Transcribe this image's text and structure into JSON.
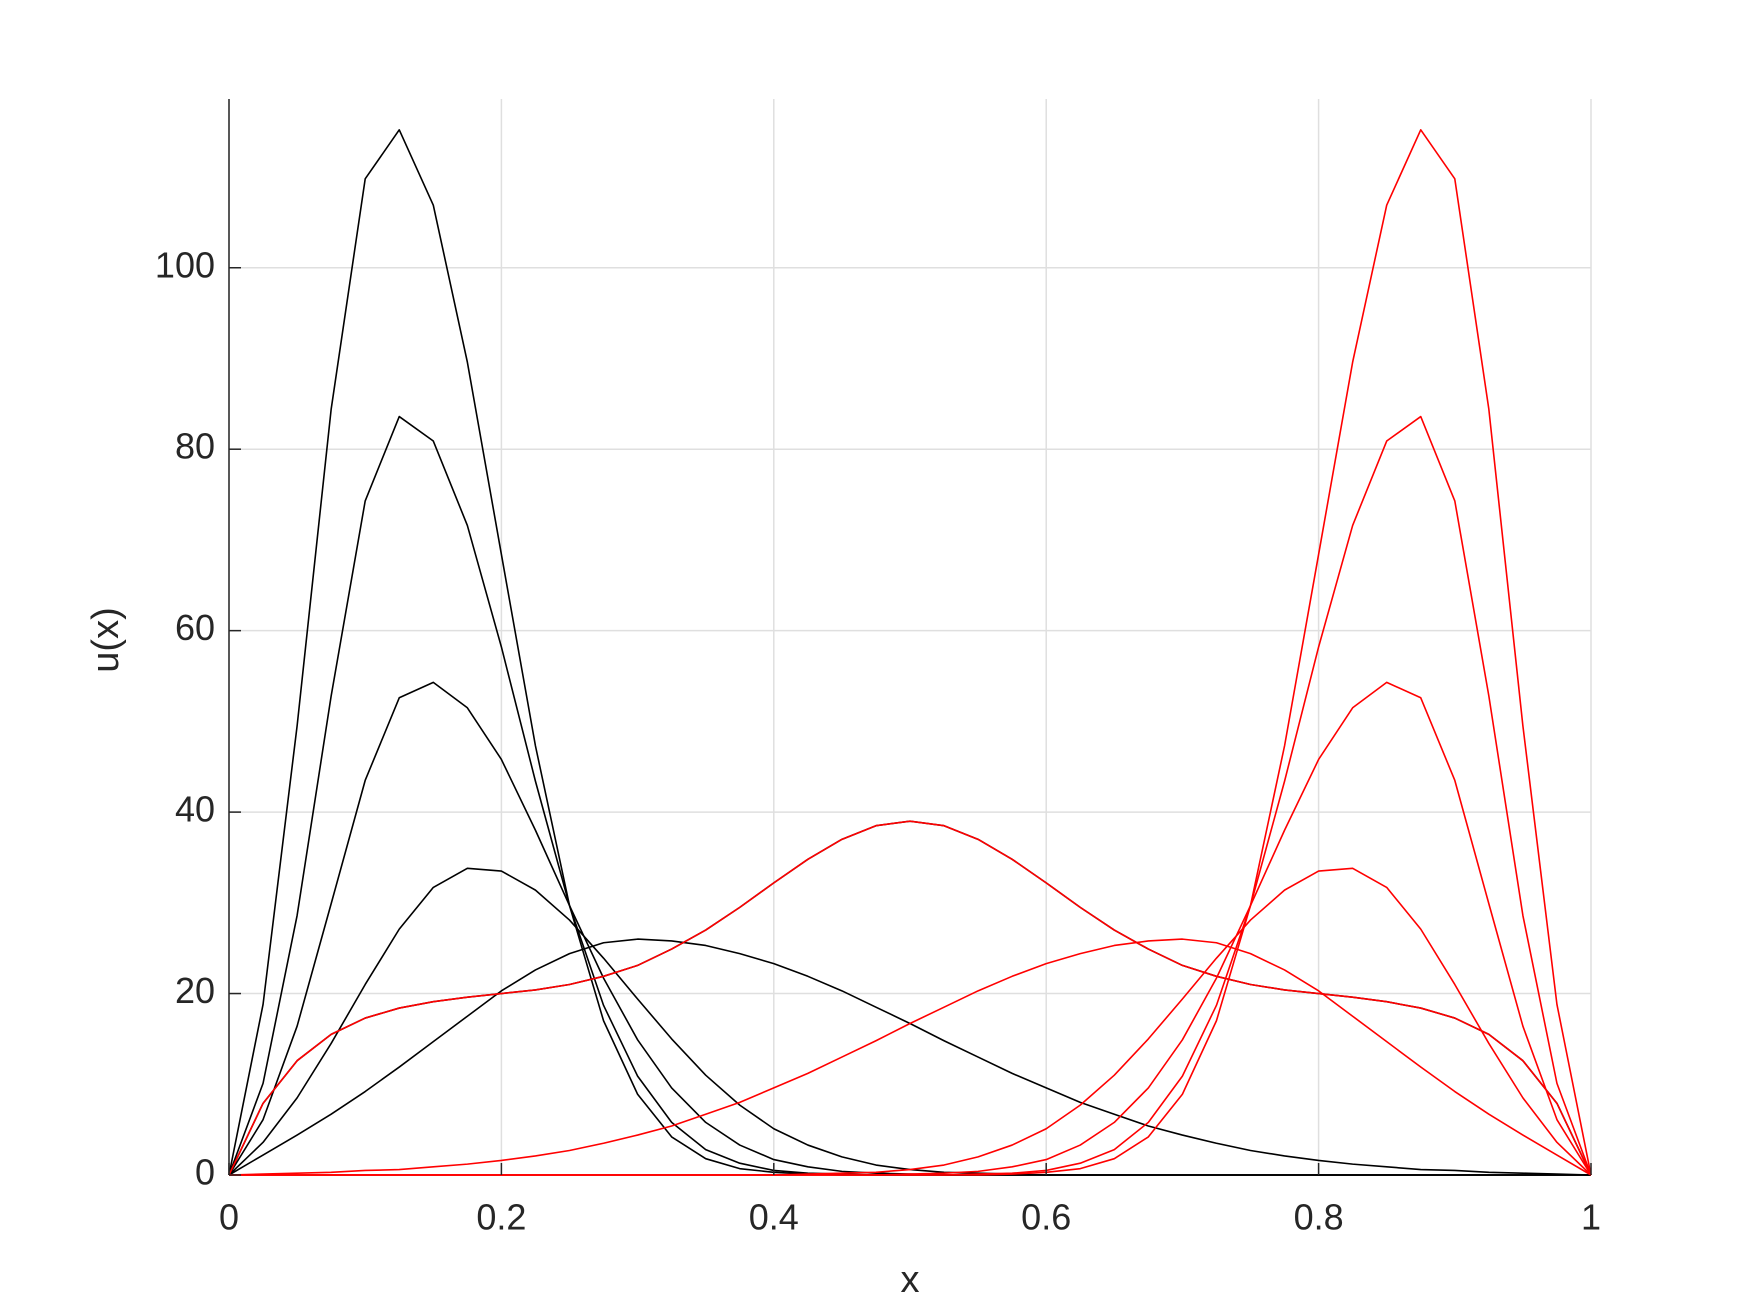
{
  "chart_data": {
    "type": "line",
    "xlabel": "x",
    "ylabel": "u(x)",
    "xlim": [
      0,
      1
    ],
    "ylim": [
      0,
      118.6
    ],
    "xticks": [
      0,
      0.2,
      0.4,
      0.6,
      0.8,
      1
    ],
    "yticks": [
      0,
      20,
      40,
      60,
      80,
      100
    ],
    "grid": true,
    "x": [
      0,
      0.025,
      0.05,
      0.075,
      0.1,
      0.125,
      0.15,
      0.175,
      0.2,
      0.225,
      0.25,
      0.275,
      0.3,
      0.325,
      0.35,
      0.375,
      0.4,
      0.425,
      0.45,
      0.475,
      0.5,
      0.525,
      0.55,
      0.575,
      0.6,
      0.625,
      0.65,
      0.675,
      0.7,
      0.725,
      0.75,
      0.775,
      0.8,
      0.825,
      0.85,
      0.875,
      0.9,
      0.925,
      0.95,
      0.975,
      1
    ],
    "series": [
      {
        "color": "#000000",
        "values": [
          0,
          7.9,
          12.6,
          15.5,
          17.3,
          18.4,
          19.1,
          19.6,
          20.0,
          20.4,
          21.0,
          21.9,
          23.1,
          24.9,
          27.0,
          29.5,
          32.2,
          34.8,
          37.0,
          38.5,
          39.0,
          38.5,
          37.0,
          34.8,
          32.2,
          29.5,
          27.0,
          24.9,
          23.1,
          21.9,
          21.0,
          20.4,
          20.0,
          19.6,
          19.1,
          18.4,
          17.3,
          15.5,
          12.6,
          7.9,
          0
        ]
      },
      {
        "color": "#000000",
        "values": [
          0,
          2.2,
          4.4,
          6.7,
          9.2,
          11.9,
          14.7,
          17.5,
          20.3,
          22.6,
          24.4,
          25.6,
          26.0,
          25.8,
          25.3,
          24.4,
          23.3,
          21.9,
          20.3,
          18.5,
          16.7,
          14.8,
          13.0,
          11.2,
          9.6,
          8.0,
          6.7,
          5.4,
          4.4,
          3.5,
          2.7,
          2.1,
          1.6,
          1.2,
          0.9,
          0.6,
          0.5,
          0.3,
          0.2,
          0.1,
          0
        ]
      },
      {
        "color": "#000000",
        "values": [
          0,
          3.6,
          8.5,
          14.5,
          21.0,
          27.1,
          31.7,
          33.8,
          33.5,
          31.4,
          28.1,
          23.9,
          19.4,
          15.0,
          11.0,
          7.7,
          5.1,
          3.3,
          2.0,
          1.1,
          0.6,
          0.3,
          0.2,
          0.1,
          0,
          0,
          0,
          0,
          0,
          0,
          0,
          0,
          0,
          0,
          0,
          0,
          0,
          0,
          0,
          0,
          0
        ]
      },
      {
        "color": "#000000",
        "values": [
          0,
          6.1,
          16.4,
          29.9,
          43.5,
          52.6,
          54.3,
          51.5,
          45.8,
          38.0,
          29.7,
          21.7,
          14.9,
          9.6,
          5.8,
          3.3,
          1.7,
          0.9,
          0.4,
          0.2,
          0.1,
          0,
          0,
          0,
          0,
          0,
          0,
          0,
          0,
          0,
          0,
          0,
          0,
          0,
          0,
          0,
          0,
          0,
          0,
          0,
          0
        ]
      },
      {
        "color": "#000000",
        "values": [
          0,
          10.1,
          28.6,
          52.8,
          74.3,
          83.6,
          80.9,
          71.6,
          58.2,
          43.4,
          29.7,
          18.7,
          10.9,
          5.8,
          2.8,
          1.3,
          0.5,
          0.2,
          0.1,
          0,
          0,
          0,
          0,
          0,
          0,
          0,
          0,
          0,
          0,
          0,
          0,
          0,
          0,
          0,
          0,
          0,
          0,
          0,
          0,
          0,
          0
        ]
      },
      {
        "color": "#000000",
        "values": [
          0,
          18.8,
          49.5,
          84.4,
          109.8,
          115.2,
          106.9,
          89.6,
          68.4,
          47.3,
          29.7,
          17.0,
          8.9,
          4.2,
          1.8,
          0.7,
          0.3,
          0.1,
          0,
          0,
          0,
          0,
          0,
          0,
          0,
          0,
          0,
          0,
          0,
          0,
          0,
          0,
          0,
          0,
          0,
          0,
          0,
          0,
          0,
          0,
          0
        ]
      },
      {
        "color": "#ff0000",
        "values": [
          0,
          7.9,
          12.6,
          15.5,
          17.3,
          18.4,
          19.1,
          19.6,
          20.0,
          20.4,
          21.0,
          21.9,
          23.1,
          24.9,
          27.0,
          29.5,
          32.2,
          34.8,
          37.0,
          38.5,
          39.0,
          38.5,
          37.0,
          34.8,
          32.2,
          29.5,
          27.0,
          24.9,
          23.1,
          21.9,
          21.0,
          20.4,
          20.0,
          19.6,
          19.1,
          18.4,
          17.3,
          15.5,
          12.6,
          7.9,
          0
        ]
      },
      {
        "color": "#ff0000",
        "values": [
          0,
          0.1,
          0.2,
          0.3,
          0.5,
          0.6,
          0.9,
          1.2,
          1.6,
          2.1,
          2.7,
          3.5,
          4.4,
          5.4,
          6.7,
          8.0,
          9.6,
          11.2,
          13.0,
          14.8,
          16.7,
          18.5,
          20.3,
          21.9,
          23.3,
          24.4,
          25.3,
          25.8,
          26.0,
          25.6,
          24.4,
          22.6,
          20.3,
          17.5,
          14.7,
          11.9,
          9.2,
          6.7,
          4.4,
          2.2,
          0
        ]
      },
      {
        "color": "#ff0000",
        "values": [
          0,
          0,
          0,
          0,
          0,
          0,
          0,
          0,
          0,
          0,
          0,
          0,
          0,
          0,
          0,
          0,
          0,
          0.1,
          0.2,
          0.3,
          0.6,
          1.1,
          2.0,
          3.3,
          5.1,
          7.7,
          11.0,
          15.0,
          19.4,
          23.9,
          28.1,
          31.4,
          33.5,
          33.8,
          31.7,
          27.1,
          21.0,
          14.5,
          8.5,
          3.6,
          0
        ]
      },
      {
        "color": "#ff0000",
        "values": [
          0,
          0,
          0,
          0,
          0,
          0,
          0,
          0,
          0,
          0,
          0,
          0,
          0,
          0,
          0,
          0,
          0,
          0,
          0,
          0,
          0.1,
          0.2,
          0.4,
          0.9,
          1.7,
          3.3,
          5.8,
          9.6,
          14.9,
          21.7,
          29.7,
          38.0,
          45.8,
          51.5,
          54.3,
          52.6,
          43.5,
          29.9,
          16.4,
          6.1,
          0
        ]
      },
      {
        "color": "#ff0000",
        "values": [
          0,
          0,
          0,
          0,
          0,
          0,
          0,
          0,
          0,
          0,
          0,
          0,
          0,
          0,
          0,
          0,
          0,
          0,
          0,
          0,
          0,
          0,
          0.1,
          0.2,
          0.5,
          1.3,
          2.8,
          5.8,
          10.9,
          18.7,
          29.7,
          43.4,
          58.2,
          71.6,
          80.9,
          83.6,
          74.3,
          52.8,
          28.6,
          10.1,
          0
        ]
      },
      {
        "color": "#ff0000",
        "values": [
          0,
          0,
          0,
          0,
          0,
          0,
          0,
          0,
          0,
          0,
          0,
          0,
          0,
          0,
          0,
          0,
          0,
          0,
          0,
          0,
          0,
          0,
          0,
          0.1,
          0.3,
          0.7,
          1.8,
          4.2,
          8.9,
          17.0,
          29.7,
          47.3,
          68.4,
          89.6,
          106.9,
          115.2,
          109.8,
          84.4,
          49.5,
          18.8,
          0
        ]
      }
    ]
  }
}
